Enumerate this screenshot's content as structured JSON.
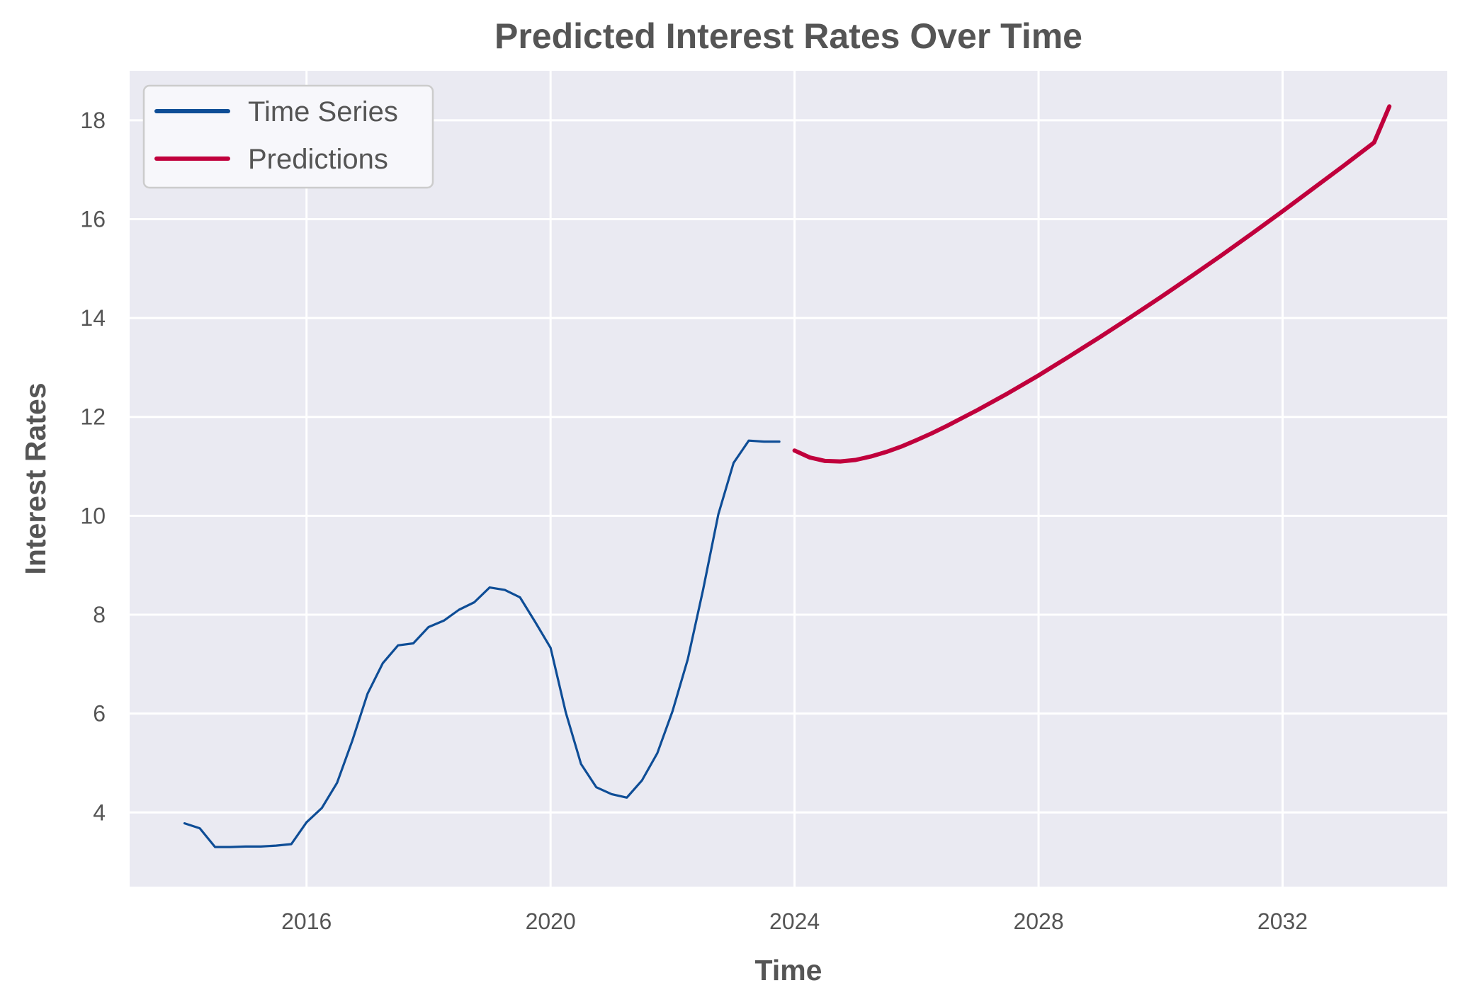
{
  "chart_data": {
    "type": "line",
    "title": "Predicted Interest Rates Over Time",
    "xlabel": "Time",
    "ylabel": "Interest Rates",
    "xlim": [
      2013.1,
      2034.7
    ],
    "ylim": [
      2.5,
      19.0
    ],
    "x_ticks": [
      2016,
      2020,
      2024,
      2028,
      2032
    ],
    "x_tick_labels": [
      "2016",
      "2020",
      "2024",
      "2028",
      "2032"
    ],
    "y_ticks": [
      4,
      6,
      8,
      10,
      12,
      14,
      16,
      18
    ],
    "y_tick_labels": [
      "4",
      "6",
      "8",
      "10",
      "12",
      "14",
      "16",
      "18"
    ],
    "grid": true,
    "legend": "top-left",
    "series": [
      {
        "name": "Time Series",
        "color": "#0e4d96",
        "x": [
          2014.0,
          2014.25,
          2014.5,
          2014.75,
          2015.0,
          2015.25,
          2015.5,
          2015.75,
          2016.0,
          2016.25,
          2016.5,
          2016.75,
          2017.0,
          2017.25,
          2017.5,
          2017.75,
          2018.0,
          2018.25,
          2018.5,
          2018.75,
          2019.0,
          2019.25,
          2019.5,
          2019.75,
          2020.0,
          2020.25,
          2020.5,
          2020.75,
          2021.0,
          2021.25,
          2021.5,
          2021.75,
          2022.0,
          2022.25,
          2022.5,
          2022.75,
          2023.0,
          2023.25,
          2023.5,
          2023.75
        ],
        "values": [
          3.78,
          3.68,
          3.3,
          3.3,
          3.31,
          3.31,
          3.33,
          3.36,
          3.8,
          4.09,
          4.6,
          5.45,
          6.4,
          7.02,
          7.38,
          7.42,
          7.75,
          7.88,
          8.1,
          8.25,
          8.55,
          8.5,
          8.35,
          7.85,
          7.33,
          6.02,
          4.98,
          4.51,
          4.37,
          4.3,
          4.65,
          5.2,
          6.05,
          7.1,
          8.5,
          10.03,
          11.07,
          11.52,
          11.5,
          11.5
        ]
      },
      {
        "name": "Predictions",
        "color": "#c0003c",
        "x": [
          2024.0,
          2024.25,
          2024.5,
          2024.75,
          2025.0,
          2025.25,
          2025.5,
          2025.75,
          2026.0,
          2026.25,
          2026.5,
          2026.75,
          2027.0,
          2027.5,
          2028.0,
          2028.5,
          2029.0,
          2029.5,
          2030.0,
          2030.5,
          2031.0,
          2031.5,
          2032.0,
          2032.5,
          2033.0,
          2033.5,
          2033.75
        ],
        "values": [
          11.32,
          11.18,
          11.11,
          11.1,
          11.13,
          11.2,
          11.29,
          11.4,
          11.53,
          11.67,
          11.82,
          11.98,
          12.14,
          12.48,
          12.84,
          13.22,
          13.61,
          14.01,
          14.42,
          14.84,
          15.27,
          15.71,
          16.16,
          16.62,
          17.08,
          17.55,
          18.28
        ]
      }
    ]
  }
}
